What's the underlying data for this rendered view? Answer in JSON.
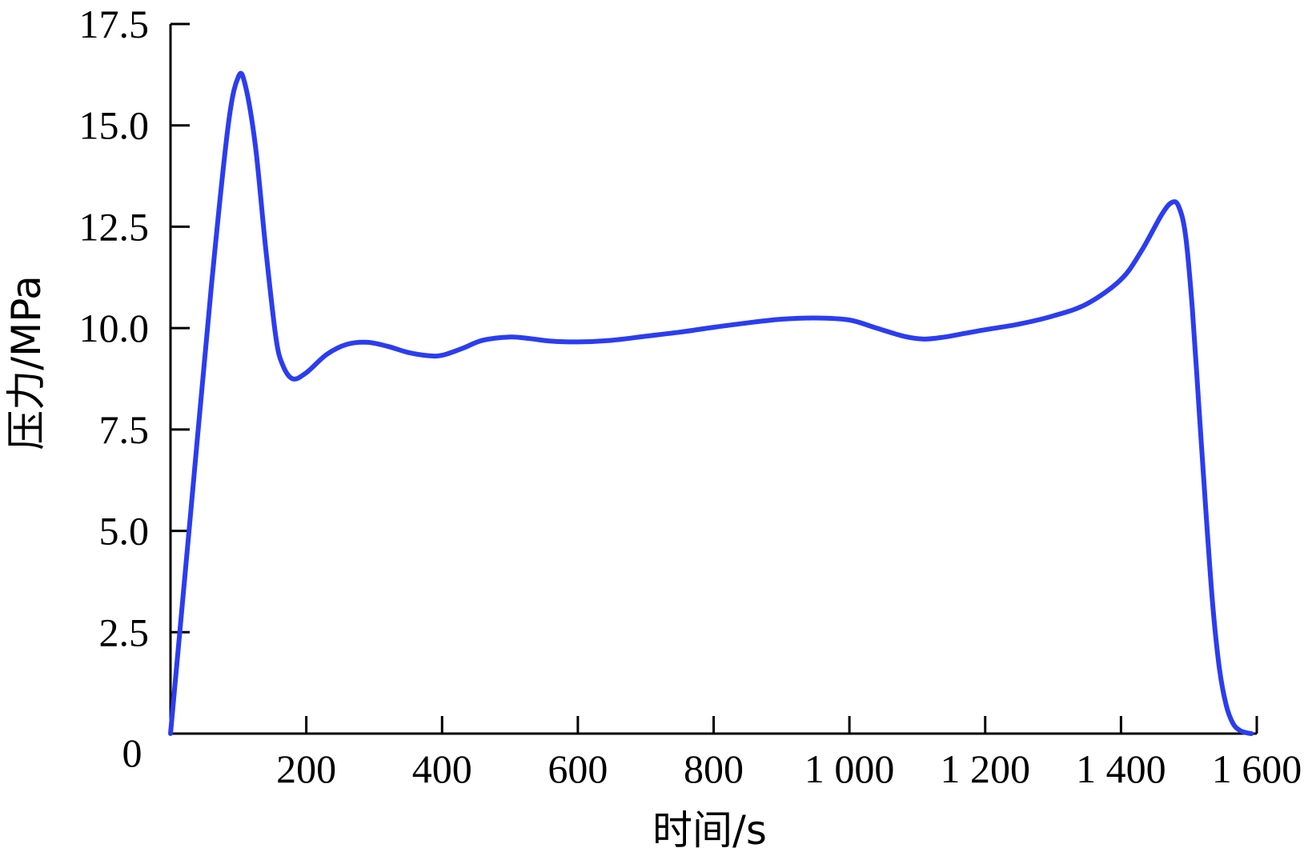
{
  "chart_data": {
    "type": "line",
    "title": "",
    "xlabel": "时间/s",
    "ylabel": "压力/MPa",
    "xlim": [
      0,
      1600
    ],
    "ylim": [
      0,
      17.5
    ],
    "x_ticks": [
      {
        "value": 0,
        "label": "0"
      },
      {
        "value": 200,
        "label": "200"
      },
      {
        "value": 400,
        "label": "400"
      },
      {
        "value": 600,
        "label": "600"
      },
      {
        "value": 800,
        "label": "800"
      },
      {
        "value": 1000,
        "label": "1 000"
      },
      {
        "value": 1200,
        "label": "1 200"
      },
      {
        "value": 1400,
        "label": "1 400"
      },
      {
        "value": 1600,
        "label": "1 600"
      }
    ],
    "y_ticks": [
      {
        "value": 2.5,
        "label": "2.5"
      },
      {
        "value": 5.0,
        "label": "5.0"
      },
      {
        "value": 7.5,
        "label": "7.5"
      },
      {
        "value": 10.0,
        "label": "10.0"
      },
      {
        "value": 12.5,
        "label": "12.5"
      },
      {
        "value": 15.0,
        "label": "15.0"
      },
      {
        "value": 17.5,
        "label": "17.5"
      }
    ],
    "grid": false,
    "series": [
      {
        "color": "#2b3df0",
        "x": [
          0,
          30,
          60,
          85,
          100,
          110,
          125,
          140,
          155,
          165,
          180,
          200,
          230,
          260,
          290,
          320,
          350,
          380,
          400,
          430,
          460,
          500,
          530,
          560,
          600,
          650,
          700,
          750,
          800,
          850,
          900,
          950,
          1000,
          1040,
          1080,
          1110,
          1140,
          1170,
          1200,
          1250,
          1300,
          1350,
          1400,
          1430,
          1460,
          1475,
          1485,
          1495,
          1505,
          1515,
          1525,
          1535,
          1545,
          1555,
          1565,
          1575,
          1585,
          1592
        ],
        "y": [
          0,
          5.5,
          11.0,
          15.0,
          16.2,
          16.0,
          14.5,
          12.0,
          9.8,
          9.1,
          8.75,
          8.9,
          9.35,
          9.6,
          9.65,
          9.55,
          9.4,
          9.32,
          9.33,
          9.5,
          9.7,
          9.78,
          9.74,
          9.68,
          9.66,
          9.7,
          9.8,
          9.9,
          10.02,
          10.13,
          10.22,
          10.25,
          10.2,
          10.0,
          9.8,
          9.73,
          9.78,
          9.87,
          9.96,
          10.1,
          10.3,
          10.6,
          11.2,
          11.9,
          12.8,
          13.1,
          13.0,
          12.3,
          10.5,
          8.0,
          5.5,
          3.2,
          1.6,
          0.7,
          0.25,
          0.08,
          0.02,
          0
        ]
      }
    ]
  }
}
